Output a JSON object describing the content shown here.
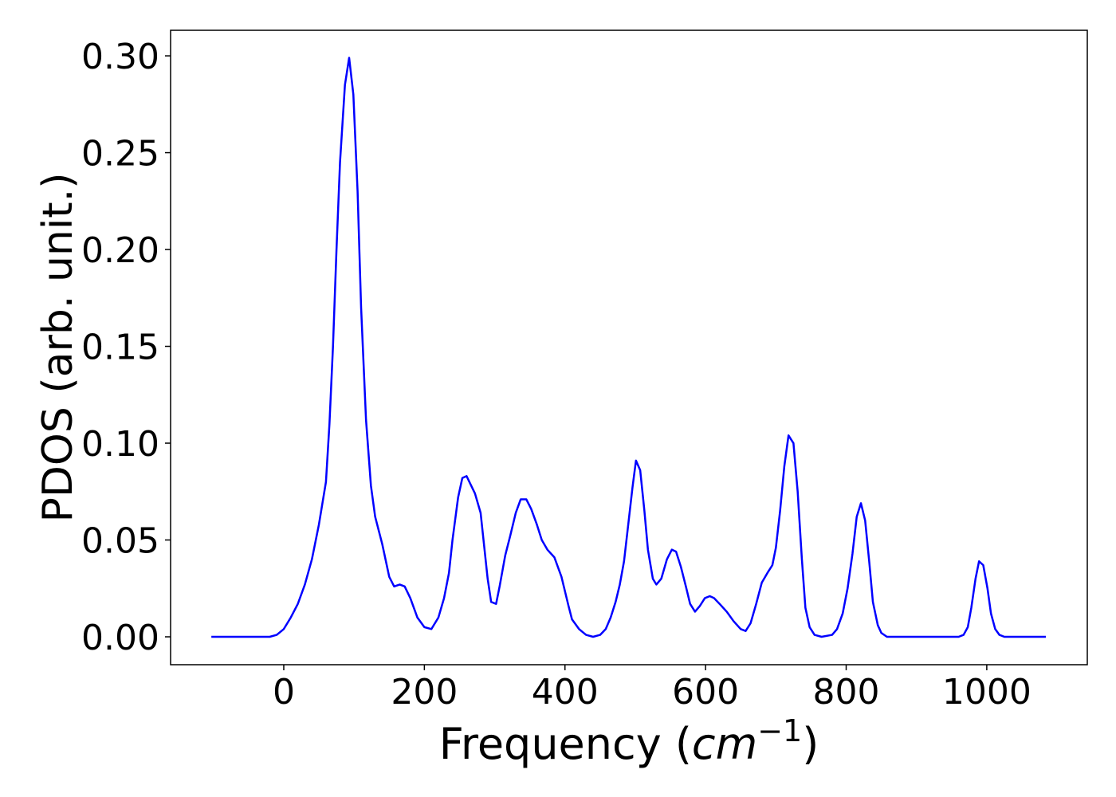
{
  "chart_data": {
    "type": "line",
    "y_label": "PDOS (arb. unit.)",
    "x_label_parts": [
      "Frequency (",
      "cm",
      "−1",
      ")"
    ],
    "color": "#0000ff",
    "x": [
      -103,
      -20,
      -10,
      0,
      10,
      20,
      30,
      40,
      50,
      60,
      65,
      70,
      75,
      80,
      87,
      93,
      99,
      105,
      110,
      117,
      124,
      130,
      140,
      150,
      157,
      165,
      172,
      180,
      190,
      200,
      210,
      220,
      228,
      235,
      240,
      248,
      254,
      260,
      272,
      280,
      290,
      295,
      302,
      307,
      315,
      322,
      330,
      337,
      345,
      352,
      360,
      367,
      375,
      385,
      395,
      405,
      410,
      420,
      430,
      440,
      450,
      458,
      465,
      472,
      478,
      484,
      490,
      496,
      501,
      507,
      513,
      518,
      525,
      530,
      537,
      545,
      552,
      558,
      565,
      572,
      578,
      585,
      592,
      599,
      606,
      612,
      620,
      630,
      640,
      650,
      657,
      664,
      672,
      680,
      688,
      695,
      700,
      706,
      712,
      718,
      725,
      731,
      737,
      742,
      748,
      755,
      765,
      780,
      787,
      795,
      802,
      809,
      815,
      821,
      827,
      833,
      838,
      845,
      850,
      858,
      960,
      967,
      973,
      978,
      984,
      989,
      995,
      1001,
      1006,
      1012,
      1018,
      1025,
      1084
    ],
    "values": [
      0,
      0,
      0.001,
      0.004,
      0.01,
      0.017,
      0.027,
      0.04,
      0.058,
      0.08,
      0.11,
      0.15,
      0.2,
      0.245,
      0.285,
      0.299,
      0.28,
      0.23,
      0.17,
      0.112,
      0.078,
      0.062,
      0.048,
      0.031,
      0.026,
      0.027,
      0.026,
      0.02,
      0.01,
      0.005,
      0.004,
      0.01,
      0.02,
      0.033,
      0.05,
      0.072,
      0.082,
      0.083,
      0.074,
      0.064,
      0.03,
      0.018,
      0.017,
      0.026,
      0.042,
      0.052,
      0.064,
      0.071,
      0.071,
      0.066,
      0.058,
      0.05,
      0.045,
      0.041,
      0.031,
      0.016,
      0.009,
      0.004,
      0.001,
      0.0,
      0.001,
      0.004,
      0.01,
      0.018,
      0.027,
      0.039,
      0.058,
      0.077,
      0.091,
      0.086,
      0.065,
      0.045,
      0.03,
      0.027,
      0.03,
      0.04,
      0.045,
      0.044,
      0.036,
      0.026,
      0.017,
      0.013,
      0.016,
      0.02,
      0.021,
      0.02,
      0.017,
      0.013,
      0.008,
      0.004,
      0.003,
      0.007,
      0.017,
      0.028,
      0.033,
      0.037,
      0.046,
      0.065,
      0.088,
      0.104,
      0.1,
      0.075,
      0.04,
      0.015,
      0.005,
      0.001,
      0.0,
      0.001,
      0.004,
      0.012,
      0.025,
      0.043,
      0.062,
      0.069,
      0.06,
      0.038,
      0.018,
      0.006,
      0.002,
      0.0,
      0.0,
      0.001,
      0.005,
      0.015,
      0.03,
      0.039,
      0.037,
      0.025,
      0.012,
      0.004,
      0.001,
      0.0,
      0.0
    ],
    "xlim": [
      -161,
      1143
    ],
    "ylim": [
      -0.0144,
      0.3132
    ],
    "xticks": [
      0,
      200,
      400,
      600,
      800,
      1000
    ],
    "yticks": [
      {
        "value": 0,
        "label": "0.00"
      },
      {
        "value": 0.05,
        "label": "0.05"
      },
      {
        "value": 0.1,
        "label": "0.10"
      },
      {
        "value": 0.15,
        "label": "0.15"
      },
      {
        "value": 0.2,
        "label": "0.20"
      },
      {
        "value": 0.25,
        "label": "0.25"
      },
      {
        "value": 0.3,
        "label": "0.30"
      }
    ]
  }
}
